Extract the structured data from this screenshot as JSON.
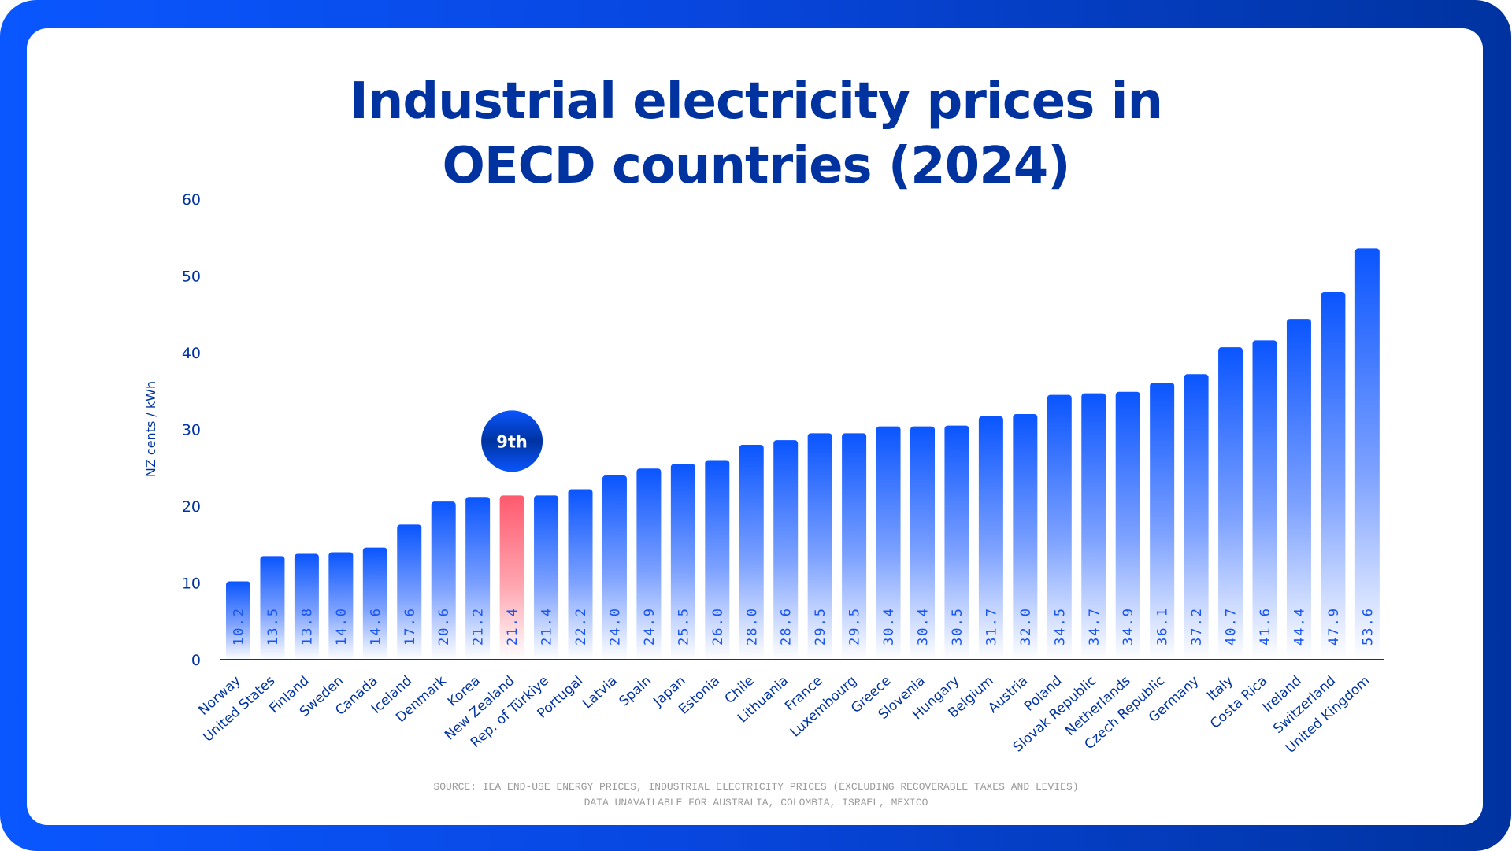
{
  "title_lines": [
    "Industrial electricity prices in",
    "OECD countries (2024)"
  ],
  "highlight": {
    "country": "New Zealand",
    "rank_badge": "9th"
  },
  "colors": {
    "bar": "#0f57ff",
    "highlight_bar": "#ff5a6e",
    "text": "#0033a0",
    "value_label": "#1a55f0",
    "badge": "#0a4ff0",
    "source": "#9a9a9a"
  },
  "source_lines": [
    "SOURCE: IEA END-USE ENERGY PRICES, INDUSTRIAL ELECTRICITY PRICES (EXCLUDING RECOVERABLE TAXES AND LEVIES)",
    "DATA UNAVAILABLE FOR AUSTRALIA, COLOMBIA, ISRAEL, MEXICO"
  ],
  "chart_data": {
    "type": "bar",
    "title": "Industrial electricity prices in OECD countries (2024)",
    "xlabel": "",
    "ylabel": "NZ cents / kWh",
    "ylim": [
      0,
      60
    ],
    "yticks": [
      0,
      10,
      20,
      30,
      40,
      50,
      60
    ],
    "grid": false,
    "legend": "none",
    "value_labels": [
      "10.2",
      "13.5",
      "13.8",
      "14.0",
      "14.6",
      "17.6",
      "20.6",
      "21.2",
      "21.4",
      "21.4",
      "22.2",
      "24.0",
      "24.9",
      "25.5",
      "26.0",
      "28.0",
      "28.6",
      "29.5",
      "29.5",
      "30.4",
      "30.4",
      "30.5",
      "31.7",
      "32.0",
      "34.5",
      "34.7",
      "34.9",
      "36.1",
      "37.2",
      "40.7",
      "41.6",
      "44.4",
      "47.9",
      "53.6"
    ],
    "categories": [
      "Norway",
      "United States",
      "Finland",
      "Sweden",
      "Canada",
      "Iceland",
      "Denmark",
      "Korea",
      "New Zealand",
      "Rep. of Türkiye",
      "Portugal",
      "Latvia",
      "Spain",
      "Japan",
      "Estonia",
      "Chile",
      "Lithuania",
      "France",
      "Luxembourg",
      "Greece",
      "Slovenia",
      "Hungary",
      "Belgium",
      "Austria",
      "Poland",
      "Slovak Republic",
      "Netherlands",
      "Czech Republic",
      "Germany",
      "Italy",
      "Costa Rica",
      "Ireland",
      "Switzerland",
      "United Kingdom"
    ],
    "values": [
      10.2,
      13.5,
      13.8,
      14.0,
      14.6,
      17.6,
      20.6,
      21.2,
      21.4,
      21.4,
      22.2,
      24.0,
      24.9,
      25.5,
      26.0,
      28.0,
      28.6,
      29.5,
      29.5,
      30.4,
      30.4,
      30.5,
      31.7,
      32.0,
      34.5,
      34.7,
      34.9,
      36.1,
      37.2,
      40.7,
      41.6,
      44.4,
      47.9,
      53.6
    ],
    "highlight_index": 8,
    "annotations": [
      {
        "category": "New Zealand",
        "text": "9th"
      }
    ]
  }
}
